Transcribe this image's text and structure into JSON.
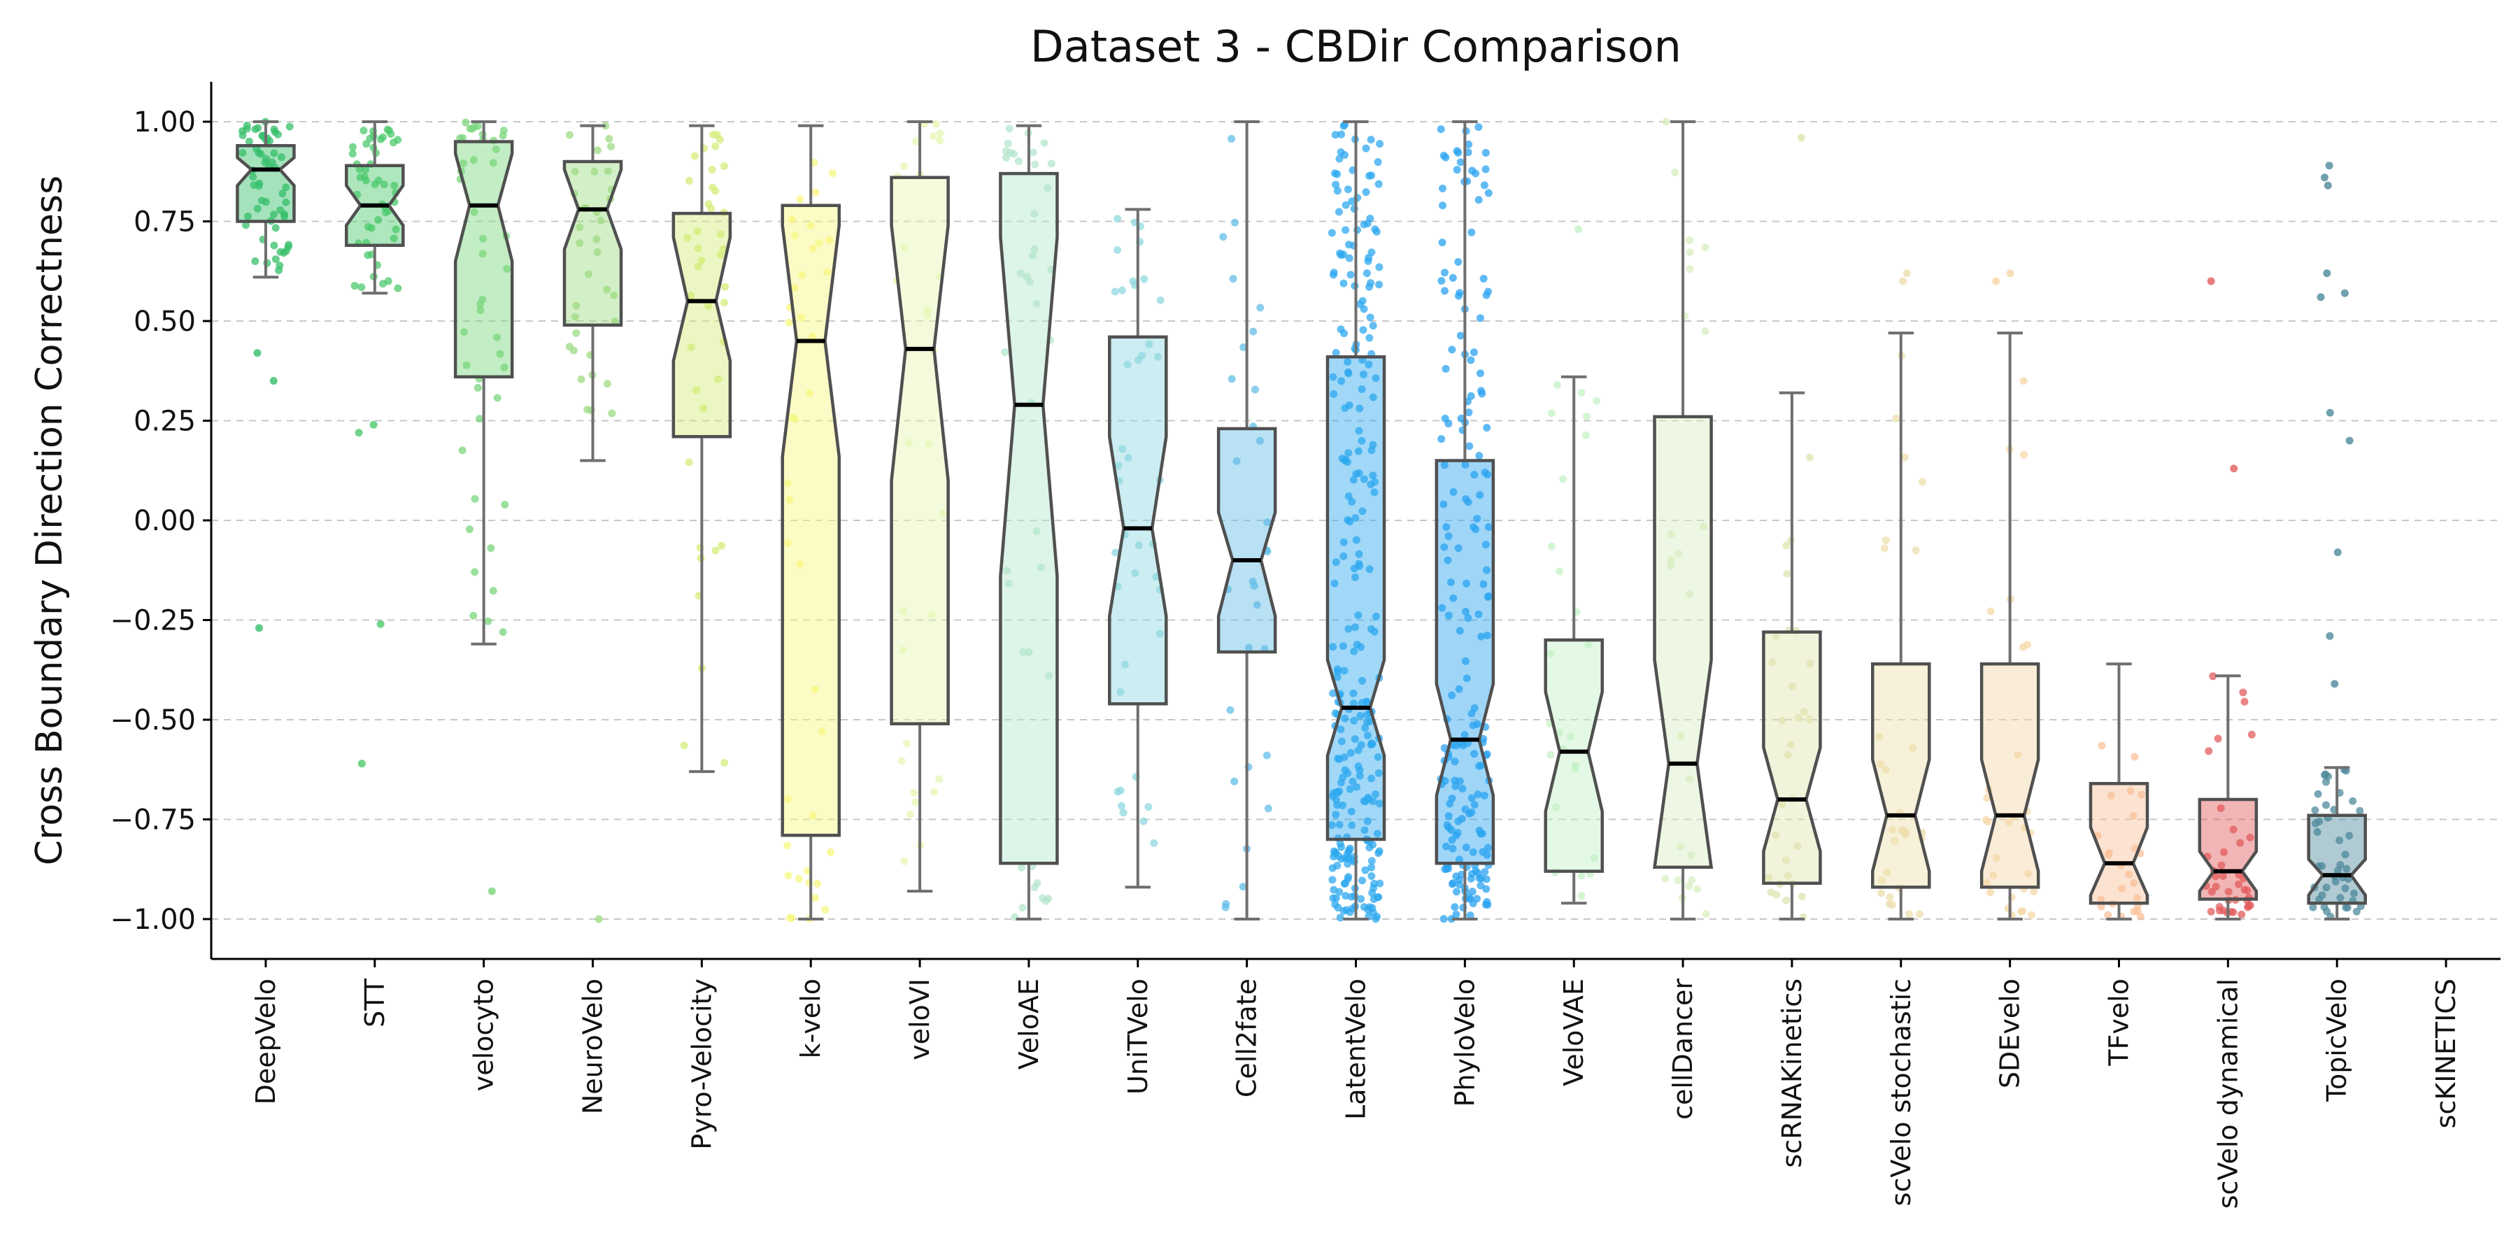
{
  "chart_data": {
    "type": "boxplot",
    "title": "Dataset 3 - CBDir Comparison",
    "xlabel": "",
    "ylabel": "Cross Boundary Direction Correctness",
    "ylim": [
      -1.1,
      1.1
    ],
    "yticks": [
      -1.0,
      -0.75,
      -0.5,
      -0.25,
      0.0,
      0.25,
      0.5,
      0.75,
      1.0
    ],
    "ytick_labels": [
      "−1.00",
      "−0.75",
      "−0.50",
      "−0.25",
      "0.00",
      "0.25",
      "0.50",
      "0.75",
      "1.00"
    ],
    "grid": "horizontal dashed",
    "notched": true,
    "categories": [
      "DeepVelo",
      "STT",
      "velocyto",
      "NeuroVelo",
      "Pyro-Velocity",
      "k-velo",
      "veloVI",
      "VeloAE",
      "UniTVelo",
      "Cell2fate",
      "LatentVelo",
      "PhyloVelo",
      "VeloVAE",
      "cellDancer",
      "scRNAKinetics",
      "scVelo stochastic",
      "SDEvelo",
      "TFvelo",
      "scVelo dynamical",
      "TopicVelo",
      "scKINETICS"
    ],
    "boxes": [
      {
        "name": "DeepVelo",
        "color": "#35bf6a",
        "q1": 0.75,
        "median": 0.88,
        "q3": 0.94,
        "whisker_low": 0.61,
        "whisker_high": 1.0,
        "notch_low": 0.84,
        "notch_high": 0.91,
        "n_points": 60
      },
      {
        "name": "STT",
        "color": "#4cc96c",
        "q1": 0.69,
        "median": 0.79,
        "q3": 0.89,
        "whisker_low": 0.57,
        "whisker_high": 1.0,
        "notch_low": 0.74,
        "notch_high": 0.84,
        "n_points": 50
      },
      {
        "name": "velocyto",
        "color": "#7ad67c",
        "q1": 0.36,
        "median": 0.79,
        "q3": 0.95,
        "whisker_low": -0.31,
        "whisker_high": 1.0,
        "notch_low": 0.65,
        "notch_high": 0.92,
        "n_points": 45
      },
      {
        "name": "NeuroVelo",
        "color": "#9edb83",
        "q1": 0.49,
        "median": 0.78,
        "q3": 0.9,
        "whisker_low": 0.15,
        "whisker_high": 0.99,
        "notch_low": 0.68,
        "notch_high": 0.88,
        "n_points": 35
      },
      {
        "name": "Pyro-Velocity",
        "color": "#d4ec78",
        "q1": 0.21,
        "median": 0.55,
        "q3": 0.77,
        "whisker_low": -0.63,
        "whisker_high": 0.99,
        "notch_low": 0.4,
        "notch_high": 0.71,
        "n_points": 40
      },
      {
        "name": "k-velo",
        "color": "#f7f780",
        "q1": -0.79,
        "median": 0.45,
        "q3": 0.79,
        "whisker_low": -1.0,
        "whisker_high": 0.99,
        "notch_low": 0.16,
        "notch_high": 0.74,
        "n_points": 40
      },
      {
        "name": "veloVI",
        "color": "#e6f7b4",
        "q1": -0.51,
        "median": 0.43,
        "q3": 0.86,
        "whisker_low": -0.93,
        "whisker_high": 1.0,
        "notch_low": 0.1,
        "notch_high": 0.74,
        "n_points": 30
      },
      {
        "name": "VeloAE",
        "color": "#b4e6cc",
        "q1": -0.86,
        "median": 0.29,
        "q3": 0.87,
        "whisker_low": -1.0,
        "whisker_high": 0.99,
        "notch_low": -0.14,
        "notch_high": 0.71,
        "n_points": 40
      },
      {
        "name": "UniTVelo",
        "color": "#8fd8e0",
        "q1": -0.46,
        "median": -0.02,
        "q3": 0.46,
        "whisker_low": -0.92,
        "whisker_high": 0.78,
        "notch_low": -0.24,
        "notch_high": 0.21,
        "n_points": 40
      },
      {
        "name": "Cell2fate",
        "color": "#63bde7",
        "q1": -0.33,
        "median": -0.1,
        "q3": 0.23,
        "whisker_low": -1.0,
        "whisker_high": 1.0,
        "notch_low": -0.24,
        "notch_high": 0.02,
        "n_points": 30
      },
      {
        "name": "LatentVelo",
        "color": "#2ea8ef",
        "q1": -0.8,
        "median": -0.47,
        "q3": 0.41,
        "whisker_low": -1.0,
        "whisker_high": 1.0,
        "notch_low": -0.59,
        "notch_high": -0.35,
        "n_points": 280
      },
      {
        "name": "PhyloVelo",
        "color": "#2aa3f0",
        "q1": -0.86,
        "median": -0.55,
        "q3": 0.15,
        "whisker_low": -1.0,
        "whisker_high": 1.0,
        "notch_low": -0.69,
        "notch_high": -0.41,
        "n_points": 200
      },
      {
        "name": "VeloVAE",
        "color": "#c4f2c6",
        "q1": -0.88,
        "median": -0.58,
        "q3": -0.3,
        "whisker_low": -0.96,
        "whisker_high": 0.36,
        "notch_low": -0.73,
        "notch_high": -0.43,
        "n_points": 25
      },
      {
        "name": "cellDancer",
        "color": "#d8eec0",
        "q1": -0.87,
        "median": -0.61,
        "q3": 0.26,
        "whisker_low": -1.0,
        "whisker_high": 1.0,
        "notch_low": -0.87,
        "notch_high": -0.35,
        "n_points": 25
      },
      {
        "name": "scRNAKinetics",
        "color": "#dfe4b0",
        "q1": -0.91,
        "median": -0.7,
        "q3": -0.28,
        "whisker_low": -1.0,
        "whisker_high": 0.32,
        "notch_low": -0.83,
        "notch_high": -0.57,
        "n_points": 30
      },
      {
        "name": "scVelo stochastic",
        "color": "#eedfae",
        "q1": -0.92,
        "median": -0.74,
        "q3": -0.36,
        "whisker_low": -1.0,
        "whisker_high": 0.47,
        "notch_low": -0.88,
        "notch_high": -0.6,
        "n_points": 30
      },
      {
        "name": "SDEvelo",
        "color": "#f5d8a8",
        "q1": -0.92,
        "median": -0.74,
        "q3": -0.36,
        "whisker_low": -1.0,
        "whisker_high": 0.47,
        "notch_low": -0.88,
        "notch_high": -0.6,
        "n_points": 30
      },
      {
        "name": "TFvelo",
        "color": "#f9c09a",
        "q1": -0.96,
        "median": -0.86,
        "q3": -0.66,
        "whisker_low": -1.0,
        "whisker_high": -0.36,
        "notch_low": -0.94,
        "notch_high": -0.77,
        "n_points": 25
      },
      {
        "name": "scVelo dynamical",
        "color": "#e25c5c",
        "q1": -0.95,
        "median": -0.88,
        "q3": -0.7,
        "whisker_low": -1.0,
        "whisker_high": -0.39,
        "notch_low": -0.93,
        "notch_high": -0.83,
        "n_points": 40
      },
      {
        "name": "TopicVelo",
        "color": "#4e8a9b",
        "q1": -0.96,
        "median": -0.89,
        "q3": -0.74,
        "whisker_low": -1.0,
        "whisker_high": -0.62,
        "notch_low": -0.94,
        "notch_high": -0.85,
        "n_points": 45
      },
      {
        "name": "scKINETICS",
        "color": "#cccccc",
        "q1": null,
        "median": null,
        "q3": null,
        "whisker_low": null,
        "whisker_high": null,
        "notch_low": null,
        "notch_high": null,
        "n_points": 0
      }
    ],
    "outliers": {
      "DeepVelo": [
        0.42,
        0.35,
        -0.27
      ],
      "STT": [
        0.24,
        0.22,
        -0.26,
        -0.61
      ],
      "velocyto": [
        -0.93
      ],
      "NeuroVelo": [
        -1.0
      ],
      "TFvelo": [],
      "scVelo dynamical": [
        0.6,
        0.13
      ],
      "TopicVelo": [
        0.89,
        0.86,
        0.84,
        0.62,
        0.57,
        0.56,
        0.27,
        0.2,
        -0.08,
        -0.29,
        -0.41
      ],
      "scRNAKinetics": [
        0.96
      ],
      "VeloVAE": [
        0.73
      ],
      "scVelo stochastic": [
        0.62,
        0.6
      ],
      "SDEvelo": [
        0.62,
        0.6
      ]
    }
  }
}
